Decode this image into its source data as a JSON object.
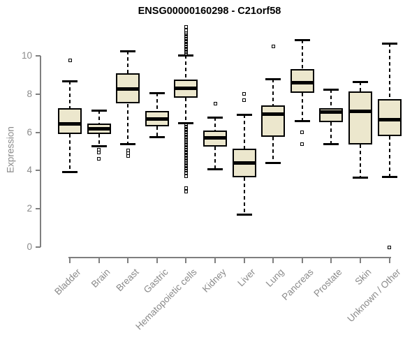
{
  "page": {
    "background": "#ffffff"
  },
  "chart_data": {
    "type": "boxplot",
    "title": "ENSG00000160298 - C21orf58",
    "xlabel": "",
    "ylabel": "Expression",
    "ylim": [
      0,
      10
    ],
    "yticks": [
      0,
      2,
      4,
      6,
      8,
      10
    ],
    "grid": false,
    "legend": "none",
    "colors": {
      "box_fill": "#ECE7CD",
      "box_border": "#000000",
      "median": "#000000",
      "axis": "#7f7f7f",
      "tick_label": "#8a8a8a",
      "title": "#000000"
    },
    "categories": [
      "Bladder",
      "Brain",
      "Breast",
      "Gastric",
      "Hematopoietic cells",
      "Kidney",
      "Liver",
      "Lung",
      "Pancreas",
      "Prostate",
      "Skin",
      "Unknown / Other"
    ],
    "series": [
      {
        "name": "Bladder",
        "whisker_low": 3.95,
        "q1": 5.9,
        "median": 6.45,
        "q3": 7.25,
        "whisker_high": 8.7,
        "outliers": [
          9.75
        ]
      },
      {
        "name": "Brain",
        "whisker_low": 5.3,
        "q1": 5.9,
        "median": 6.2,
        "q3": 6.45,
        "whisker_high": 7.15,
        "outliers": [
          5.1,
          4.95,
          4.6
        ]
      },
      {
        "name": "Breast",
        "whisker_low": 5.4,
        "q1": 7.5,
        "median": 8.25,
        "q3": 9.1,
        "whisker_high": 10.25,
        "outliers": [
          5.05,
          4.9,
          4.75
        ]
      },
      {
        "name": "Gastric",
        "whisker_low": 5.75,
        "q1": 6.3,
        "median": 6.7,
        "q3": 7.1,
        "whisker_high": 8.05,
        "outliers": []
      },
      {
        "name": "Hematopoietic cells",
        "whisker_low": 6.5,
        "q1": 7.8,
        "median": 8.3,
        "q3": 8.75,
        "whisker_high": 10.05,
        "outliers": [
          10.1,
          10.2,
          10.3,
          10.4,
          10.5,
          10.6,
          10.7,
          10.8,
          10.9,
          11.0,
          11.1,
          11.2,
          11.35,
          11.5,
          6.4,
          6.3,
          6.2,
          6.1,
          6.0,
          5.9,
          5.8,
          5.7,
          5.6,
          5.5,
          5.4,
          5.3,
          5.2,
          5.1,
          5.0,
          4.9,
          4.8,
          4.7,
          4.6,
          4.5,
          4.4,
          4.3,
          4.2,
          4.1,
          4.0,
          3.9,
          3.7,
          3.1,
          2.9
        ]
      },
      {
        "name": "Kidney",
        "whisker_low": 4.1,
        "q1": 5.25,
        "median": 5.7,
        "q3": 6.1,
        "whisker_high": 6.8,
        "outliers": [
          7.5
        ]
      },
      {
        "name": "Liver",
        "whisker_low": 1.7,
        "q1": 3.65,
        "median": 4.4,
        "q3": 5.15,
        "whisker_high": 6.95,
        "outliers": [
          8.0,
          7.7
        ]
      },
      {
        "name": "Lung",
        "whisker_low": 4.4,
        "q1": 5.75,
        "median": 6.95,
        "q3": 7.4,
        "whisker_high": 8.8,
        "outliers": [
          10.5
        ]
      },
      {
        "name": "Pancreas",
        "whisker_low": 6.6,
        "q1": 8.05,
        "median": 8.6,
        "q3": 9.3,
        "whisker_high": 10.85,
        "outliers": [
          6.0,
          5.4
        ]
      },
      {
        "name": "Prostate",
        "whisker_low": 5.4,
        "q1": 6.55,
        "median": 7.05,
        "q3": 7.25,
        "whisker_high": 8.25,
        "outliers": []
      },
      {
        "name": "Skin",
        "whisker_low": 3.65,
        "q1": 5.35,
        "median": 7.1,
        "q3": 8.15,
        "whisker_high": 8.65,
        "outliers": []
      },
      {
        "name": "Unknown / Other",
        "whisker_low": 3.7,
        "q1": 5.8,
        "median": 6.65,
        "q3": 7.75,
        "whisker_high": 10.65,
        "outliers": [
          0.0
        ]
      }
    ]
  }
}
